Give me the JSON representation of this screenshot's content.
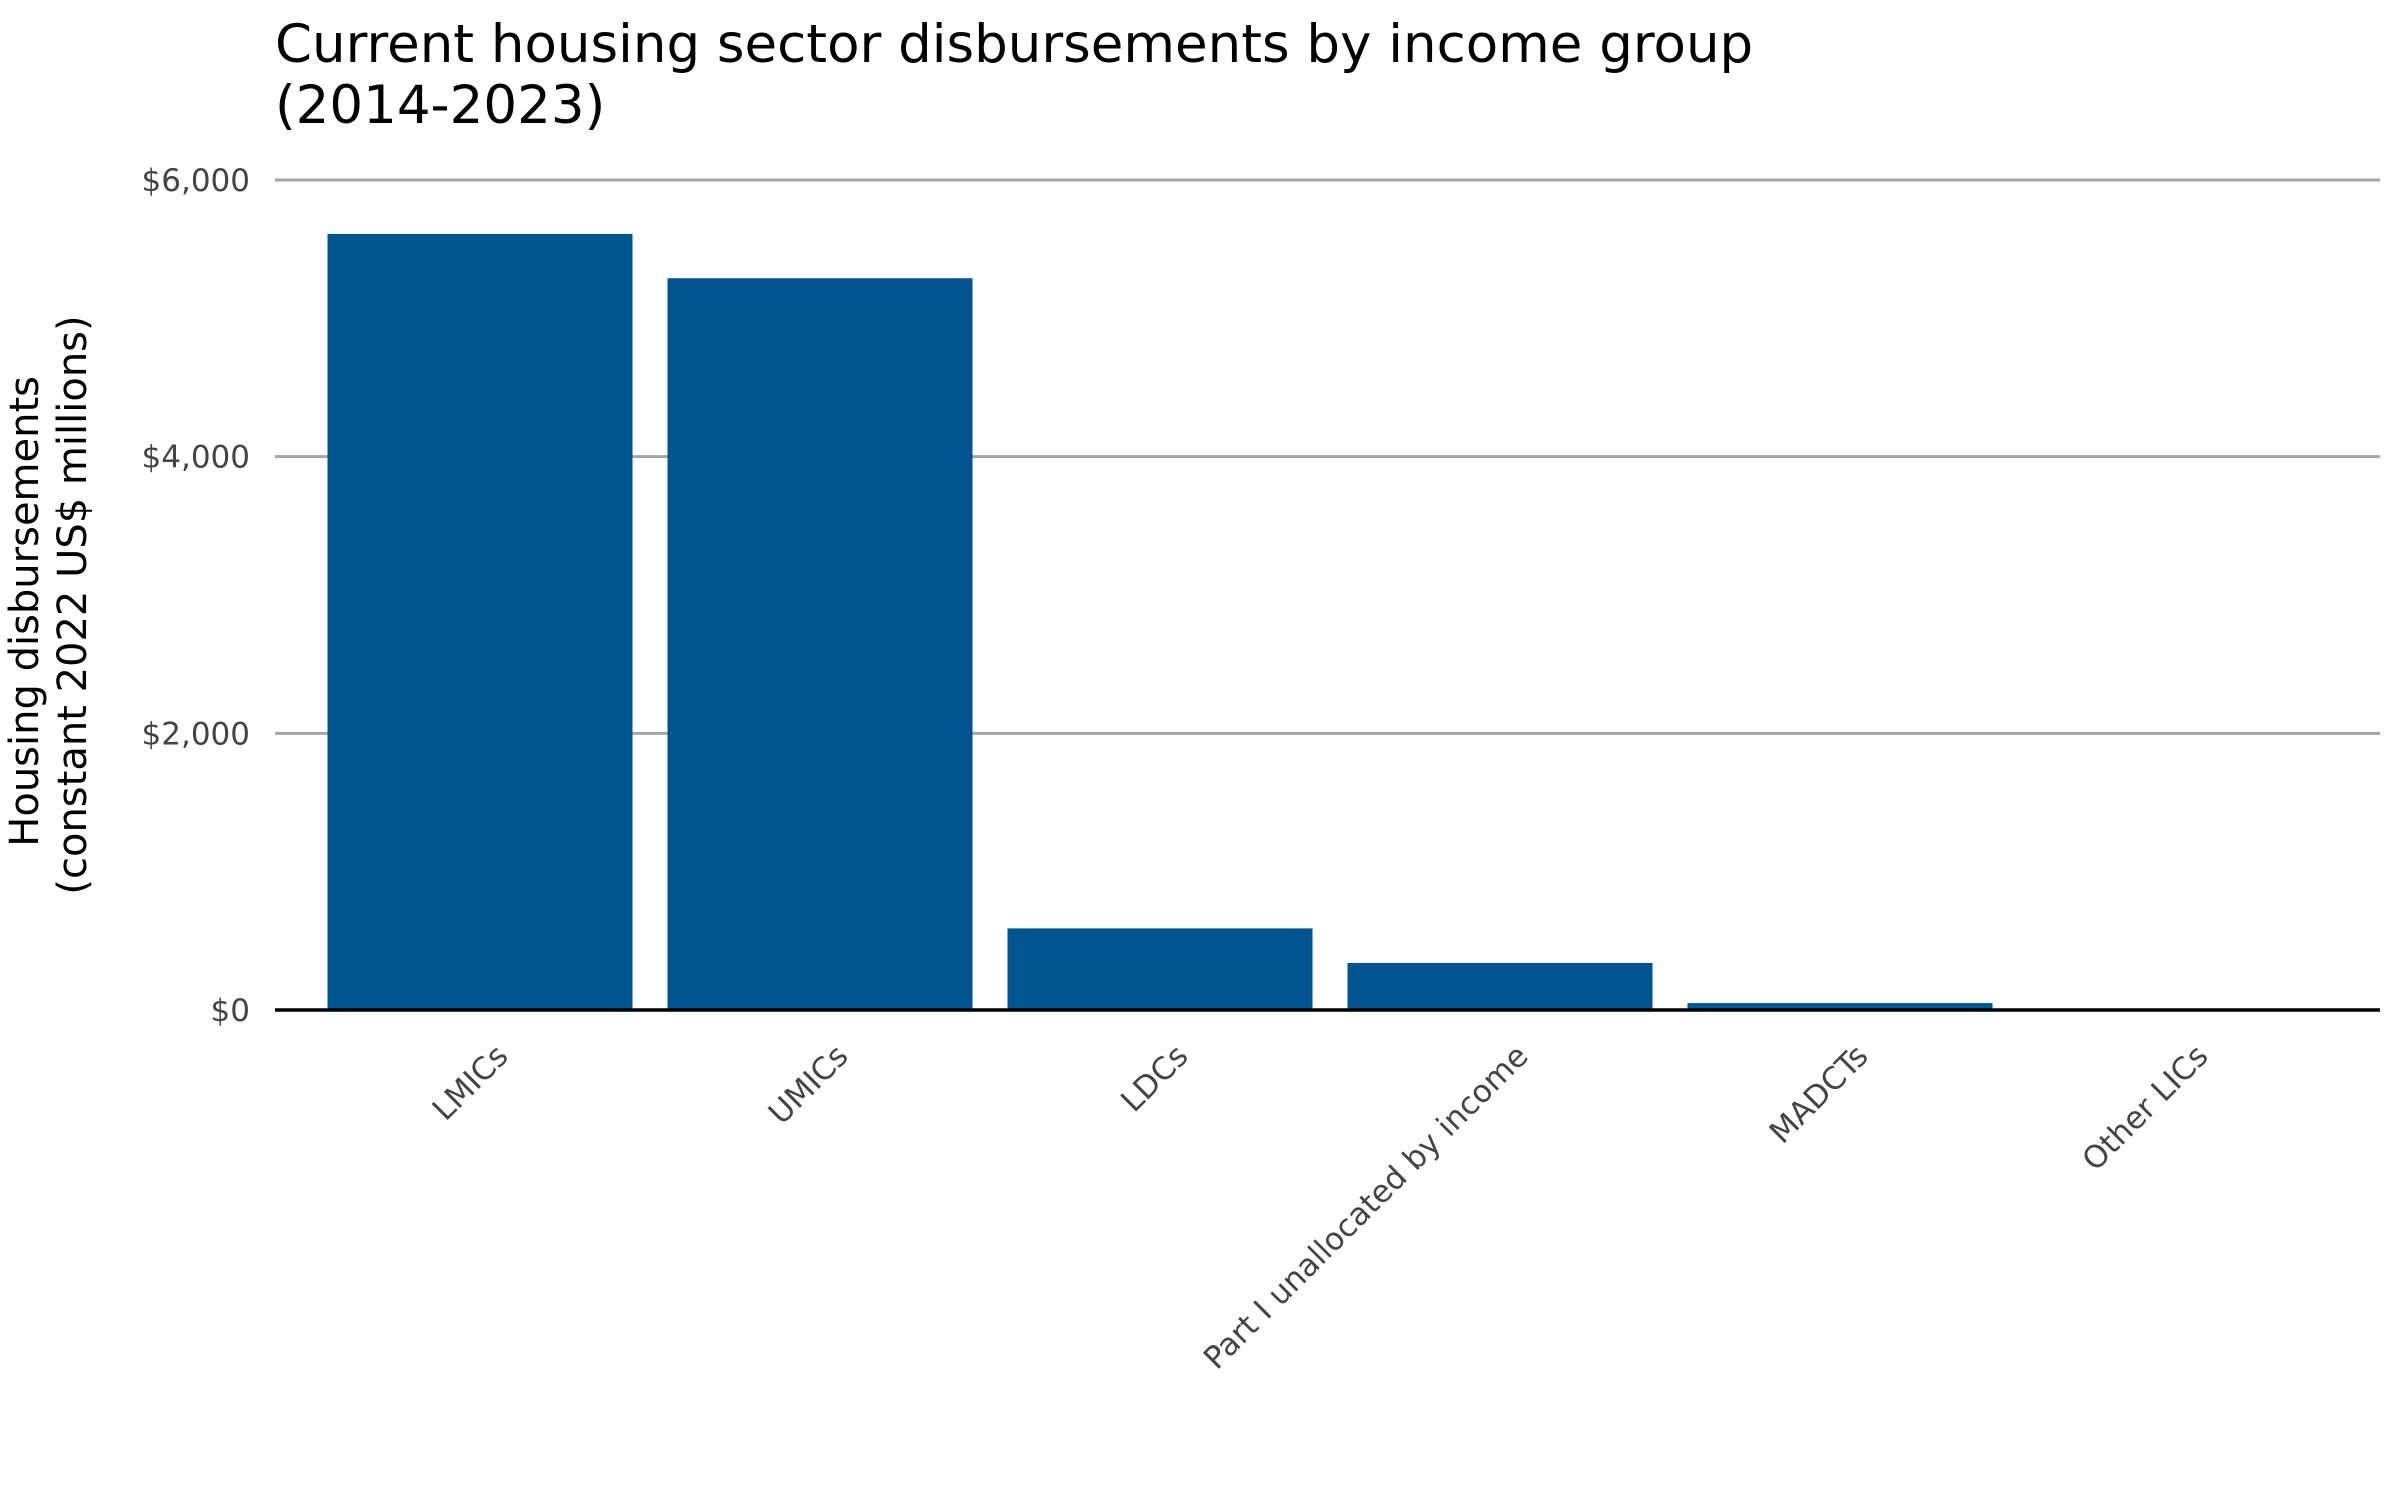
{
  "chart_data": {
    "type": "bar",
    "title_lines": [
      "Current housing sector disbursements by income group",
      "(2014-2023)"
    ],
    "ylabel_lines": [
      "Housing disbursements",
      "(constant 2022 US$ millions)"
    ],
    "xlabel": "",
    "categories": [
      "LMICs",
      "UMICs",
      "LDCs",
      "Part I unallocated by income",
      "MADCTs",
      "Other LICs"
    ],
    "values": [
      5610,
      5290,
      590,
      340,
      50,
      3
    ],
    "ylim": [
      0,
      6000
    ],
    "yticks": [
      0,
      2000,
      4000,
      6000
    ],
    "ytick_labels": [
      "$0",
      "$2,000",
      "$4,000",
      "$6,000"
    ],
    "grid": "horizontal",
    "legend": "none",
    "bar_color": "#00548F",
    "grid_color": "#a6a6a6",
    "axis_color": "#000000"
  }
}
